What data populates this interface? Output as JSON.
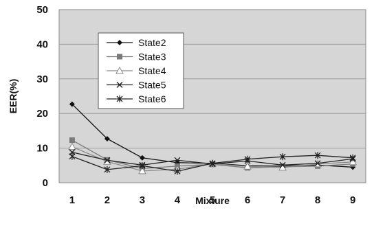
{
  "chart_data": {
    "type": "line",
    "title": "",
    "xlabel": "Mixture",
    "ylabel": "EER(%)",
    "x": [
      1,
      2,
      3,
      4,
      5,
      6,
      7,
      8,
      9
    ],
    "ylim": [
      0,
      50
    ],
    "yticks": [
      0,
      10,
      20,
      30,
      40,
      50
    ],
    "grid": true,
    "legend_position": "upper-left inside plot",
    "plot_background": "#d6d6d6",
    "series": [
      {
        "name": "State2",
        "marker": "diamond",
        "color": "#111111",
        "values": [
          22.7,
          12.7,
          7.2,
          5.8,
          5.6,
          4.9,
          4.8,
          5.1,
          4.5
        ]
      },
      {
        "name": "State3",
        "marker": "square",
        "color": "#7a7a7a",
        "values": [
          12.3,
          6.6,
          4.1,
          4.8,
          5.3,
          4.3,
          4.6,
          4.8,
          5.4
        ]
      },
      {
        "name": "State4",
        "marker": "triangle",
        "color": "#8a8a8a",
        "values": [
          10.4,
          6.1,
          3.4,
          3.9,
          5.5,
          4.7,
          4.4,
          5.4,
          6.0
        ]
      },
      {
        "name": "State5",
        "marker": "x",
        "color": "#222222",
        "values": [
          8.8,
          6.5,
          5.1,
          6.5,
          5.4,
          6.3,
          5.1,
          5.6,
          6.9
        ]
      },
      {
        "name": "State6",
        "marker": "asterisk",
        "color": "#222222",
        "values": [
          7.6,
          3.8,
          4.9,
          3.3,
          5.6,
          6.8,
          7.5,
          7.9,
          7.2
        ]
      }
    ]
  }
}
